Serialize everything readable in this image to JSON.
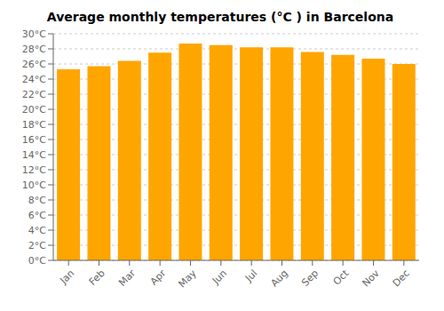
{
  "chart_data": {
    "type": "bar",
    "title": "Average monthly temperatures (°C ) in Barcelona",
    "categories": [
      "Jan",
      "Feb",
      "Mar",
      "Apr",
      "May",
      "Jun",
      "Jul",
      "Aug",
      "Sep",
      "Oct",
      "Nov",
      "Dec"
    ],
    "values": [
      25.3,
      25.7,
      26.4,
      27.5,
      28.7,
      28.5,
      28.2,
      28.2,
      27.6,
      27.2,
      26.7,
      26.0
    ],
    "color": "#FFA500",
    "ylim": [
      0,
      30
    ],
    "yticks": [
      {
        "value": 0,
        "label": "0°C"
      },
      {
        "value": 2,
        "label": "2°C"
      },
      {
        "value": 4,
        "label": "4°C"
      },
      {
        "value": 6,
        "label": "6°C"
      },
      {
        "value": 8,
        "label": "8°C"
      },
      {
        "value": 10,
        "label": "10°C"
      },
      {
        "value": 12,
        "label": "12°C"
      },
      {
        "value": 14,
        "label": "14°C"
      },
      {
        "value": 16,
        "label": "16°C"
      },
      {
        "value": 18,
        "label": "18°C"
      },
      {
        "value": 20,
        "label": "20°C"
      },
      {
        "value": 22,
        "label": "22°C"
      },
      {
        "value": 24,
        "label": "24°C"
      },
      {
        "value": 26,
        "label": "26°C"
      },
      {
        "value": 28,
        "label": "28°C"
      },
      {
        "value": 30,
        "label": "30°C"
      }
    ],
    "grid": true
  }
}
